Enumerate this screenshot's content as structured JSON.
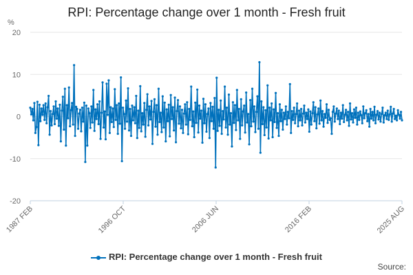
{
  "title": "RPI: Percentage change over 1 month - Fresh fruit",
  "source_label": "Source:",
  "legend_label": "RPI: Percentage change over 1 month - Fresh fruit",
  "colors": {
    "series": "#0071bc",
    "grid": "#e6e6e6",
    "axis": "#c0d0e0"
  },
  "chart_data": {
    "type": "line",
    "title": "RPI: Percentage change over 1 month - Fresh fruit",
    "ylabel": "%",
    "xlabel": "",
    "ylim": [
      -20,
      20
    ],
    "yticks": [
      20,
      10,
      0,
      -10,
      -20
    ],
    "x_start": "1987 FEB",
    "x_end": "2025 AUG",
    "xtick_labels": [
      "1987 FEB",
      "1996 OCT",
      "2006 JUN",
      "2016 FEB",
      "2025 AUG"
    ],
    "grid": true,
    "legend_position": "bottom",
    "series": [
      {
        "name": "RPI: Percentage change over 1 month - Fresh fruit",
        "values": [
          2.1,
          0.5,
          1.8,
          -0.9,
          3.2,
          -3.9,
          -2.5,
          3.5,
          -6.8,
          2.8,
          -1.1,
          1.9,
          0.4,
          2.7,
          -0.8,
          3.1,
          -1.6,
          2.2,
          4.9,
          -4.3,
          1.3,
          -2.1,
          0.6,
          2.4,
          -1.8,
          3.6,
          -0.5,
          1.9,
          -2.2,
          2.8,
          -5.9,
          1.4,
          4.7,
          -3.1,
          6.6,
          -6.9,
          2.7,
          -0.4,
          6.9,
          -2.3,
          1.5,
          3.2,
          -1.9,
          12.2,
          -4.6,
          2.3,
          1.8,
          -2.9,
          0.7,
          1.6,
          -3.5,
          2.1,
          -1.2,
          3.3,
          -10.8,
          2.6,
          -6.9,
          1.9,
          0.8,
          -2.7,
          2.4,
          -1.4,
          6.3,
          -3.4,
          1.7,
          -0.6,
          2.9,
          -1.8,
          3.6,
          -5.3,
          0.9,
          8.1,
          -2.6,
          1.2,
          -5.4,
          7.8,
          0.4,
          8.6,
          -3.9,
          2.2,
          -1.3,
          1.9,
          -2.5,
          6.5,
          -0.8,
          2.7,
          -4.1,
          3.1,
          -1.7,
          9.3,
          -10.6,
          2.1,
          0.6,
          -2.9,
          3.8,
          -1.2,
          6.7,
          -3.3,
          1.8,
          -4.6,
          2.6,
          -0.9,
          2.2,
          -1.6,
          4.9,
          -5.1,
          1.4,
          -2.7,
          7.2,
          -3.5,
          0.8,
          -1.9,
          3.2,
          -4.8,
          1.6,
          5.3,
          -2.1,
          2.4,
          -0.7,
          3.7,
          -6.5,
          1.1,
          4.1,
          -2.4,
          2.7,
          -4.3,
          6.6,
          -1.3,
          0.9,
          -3.7,
          4.8,
          -2.6,
          3.3,
          -5.9,
          1.7,
          -1.1,
          2.8,
          -4.7,
          5.1,
          -0.6,
          2.2,
          -3.3,
          4.5,
          -6.1,
          1.3,
          3.9,
          -1.7,
          2.4,
          -2.8,
          1.6,
          -3.9,
          0.7,
          2.9,
          -1.9,
          3.4,
          -4.2,
          1.8,
          -0.8,
          7.1,
          -2.3,
          1.2,
          -4.9,
          3.3,
          -1.5,
          6.4,
          -3.8,
          2.6,
          -0.5,
          1.4,
          -6.2,
          4.2,
          -1.6,
          2.9,
          -3.6,
          0.6,
          1.9,
          -5.1,
          3.2,
          -1.1,
          2.3,
          -2.9,
          4.4,
          -12.1,
          9.2,
          -3.4,
          1.6,
          -2.2,
          3.8,
          -4.1,
          1.3,
          -0.7,
          7.1,
          -2.6,
          2.1,
          -4.3,
          5.2,
          -1.9,
          0.8,
          -7.1,
          3.4,
          -1.5,
          2.7,
          -3.2,
          6.3,
          -0.9,
          1.8,
          -5.3,
          4.1,
          -2.1,
          1.2,
          2.6,
          -3.8,
          5.7,
          -1.4,
          0.6,
          -6.6,
          3.9,
          -2.3,
          6.6,
          -1.2,
          2.4,
          -3.7,
          1.1,
          4.8,
          -2.9,
          12.9,
          -8.6,
          3.6,
          -1.8,
          2.2,
          -4.4,
          1.5,
          -2.6,
          7.4,
          -5.2,
          2.1,
          -0.9,
          3.1,
          -4.9,
          1.7,
          -1.3,
          5.6,
          -2.7,
          0.8,
          -4.6,
          2.9,
          -1.1,
          1.6,
          -3.1,
          0.9,
          -0.6,
          2.4,
          -1.9,
          1.1,
          -0.4,
          7.7,
          -3.9,
          1.3,
          -0.8,
          2.1,
          -1.6,
          0.6,
          3.1,
          -2.3,
          1.4,
          -0.9,
          1.8,
          -2.1,
          0.7,
          2.6,
          -1.4,
          0.9,
          -0.6,
          1.7,
          -3.6,
          1.2,
          -1.9,
          0.8,
          3.4,
          -1.1,
          2.2,
          -2.8,
          0.5,
          1.9,
          -1.7,
          3.8,
          -0.9,
          1.3,
          -2.4,
          0.6,
          -0.3,
          2.9,
          -1.5,
          1.6,
          -0.8,
          -0.4,
          -4.1,
          1.1,
          2.4,
          -1.2,
          0.7,
          1.9,
          -0.6,
          1.4,
          -1.8,
          0.9,
          -0.5,
          2.7,
          -1.3,
          0.4,
          1.6,
          -0.9,
          1.1,
          -2.2,
          3.1,
          -0.7,
          0.8,
          -1.4,
          1.7,
          -0.3,
          2.1,
          -1.9,
          0.9,
          -0.8,
          1.2,
          0.3,
          -1.6,
          2.4,
          -0.4,
          0.8,
          1.5,
          -1.1,
          0.6,
          -2.4,
          1.8,
          -0.5,
          1.1,
          -0.9,
          2.3,
          -1.6,
          0.4,
          1.3,
          -0.7,
          0.9,
          -1.2,
          0.6,
          2.1,
          -1.4,
          0.3,
          0.9,
          -0.6,
          1.4,
          -0.8,
          0.5,
          2.3,
          -1.2,
          0.7,
          1.8,
          -0.6,
          0.2,
          -0.9,
          1.5,
          0.4,
          -0.5,
          1.1,
          -0.9
        ]
      }
    ]
  }
}
